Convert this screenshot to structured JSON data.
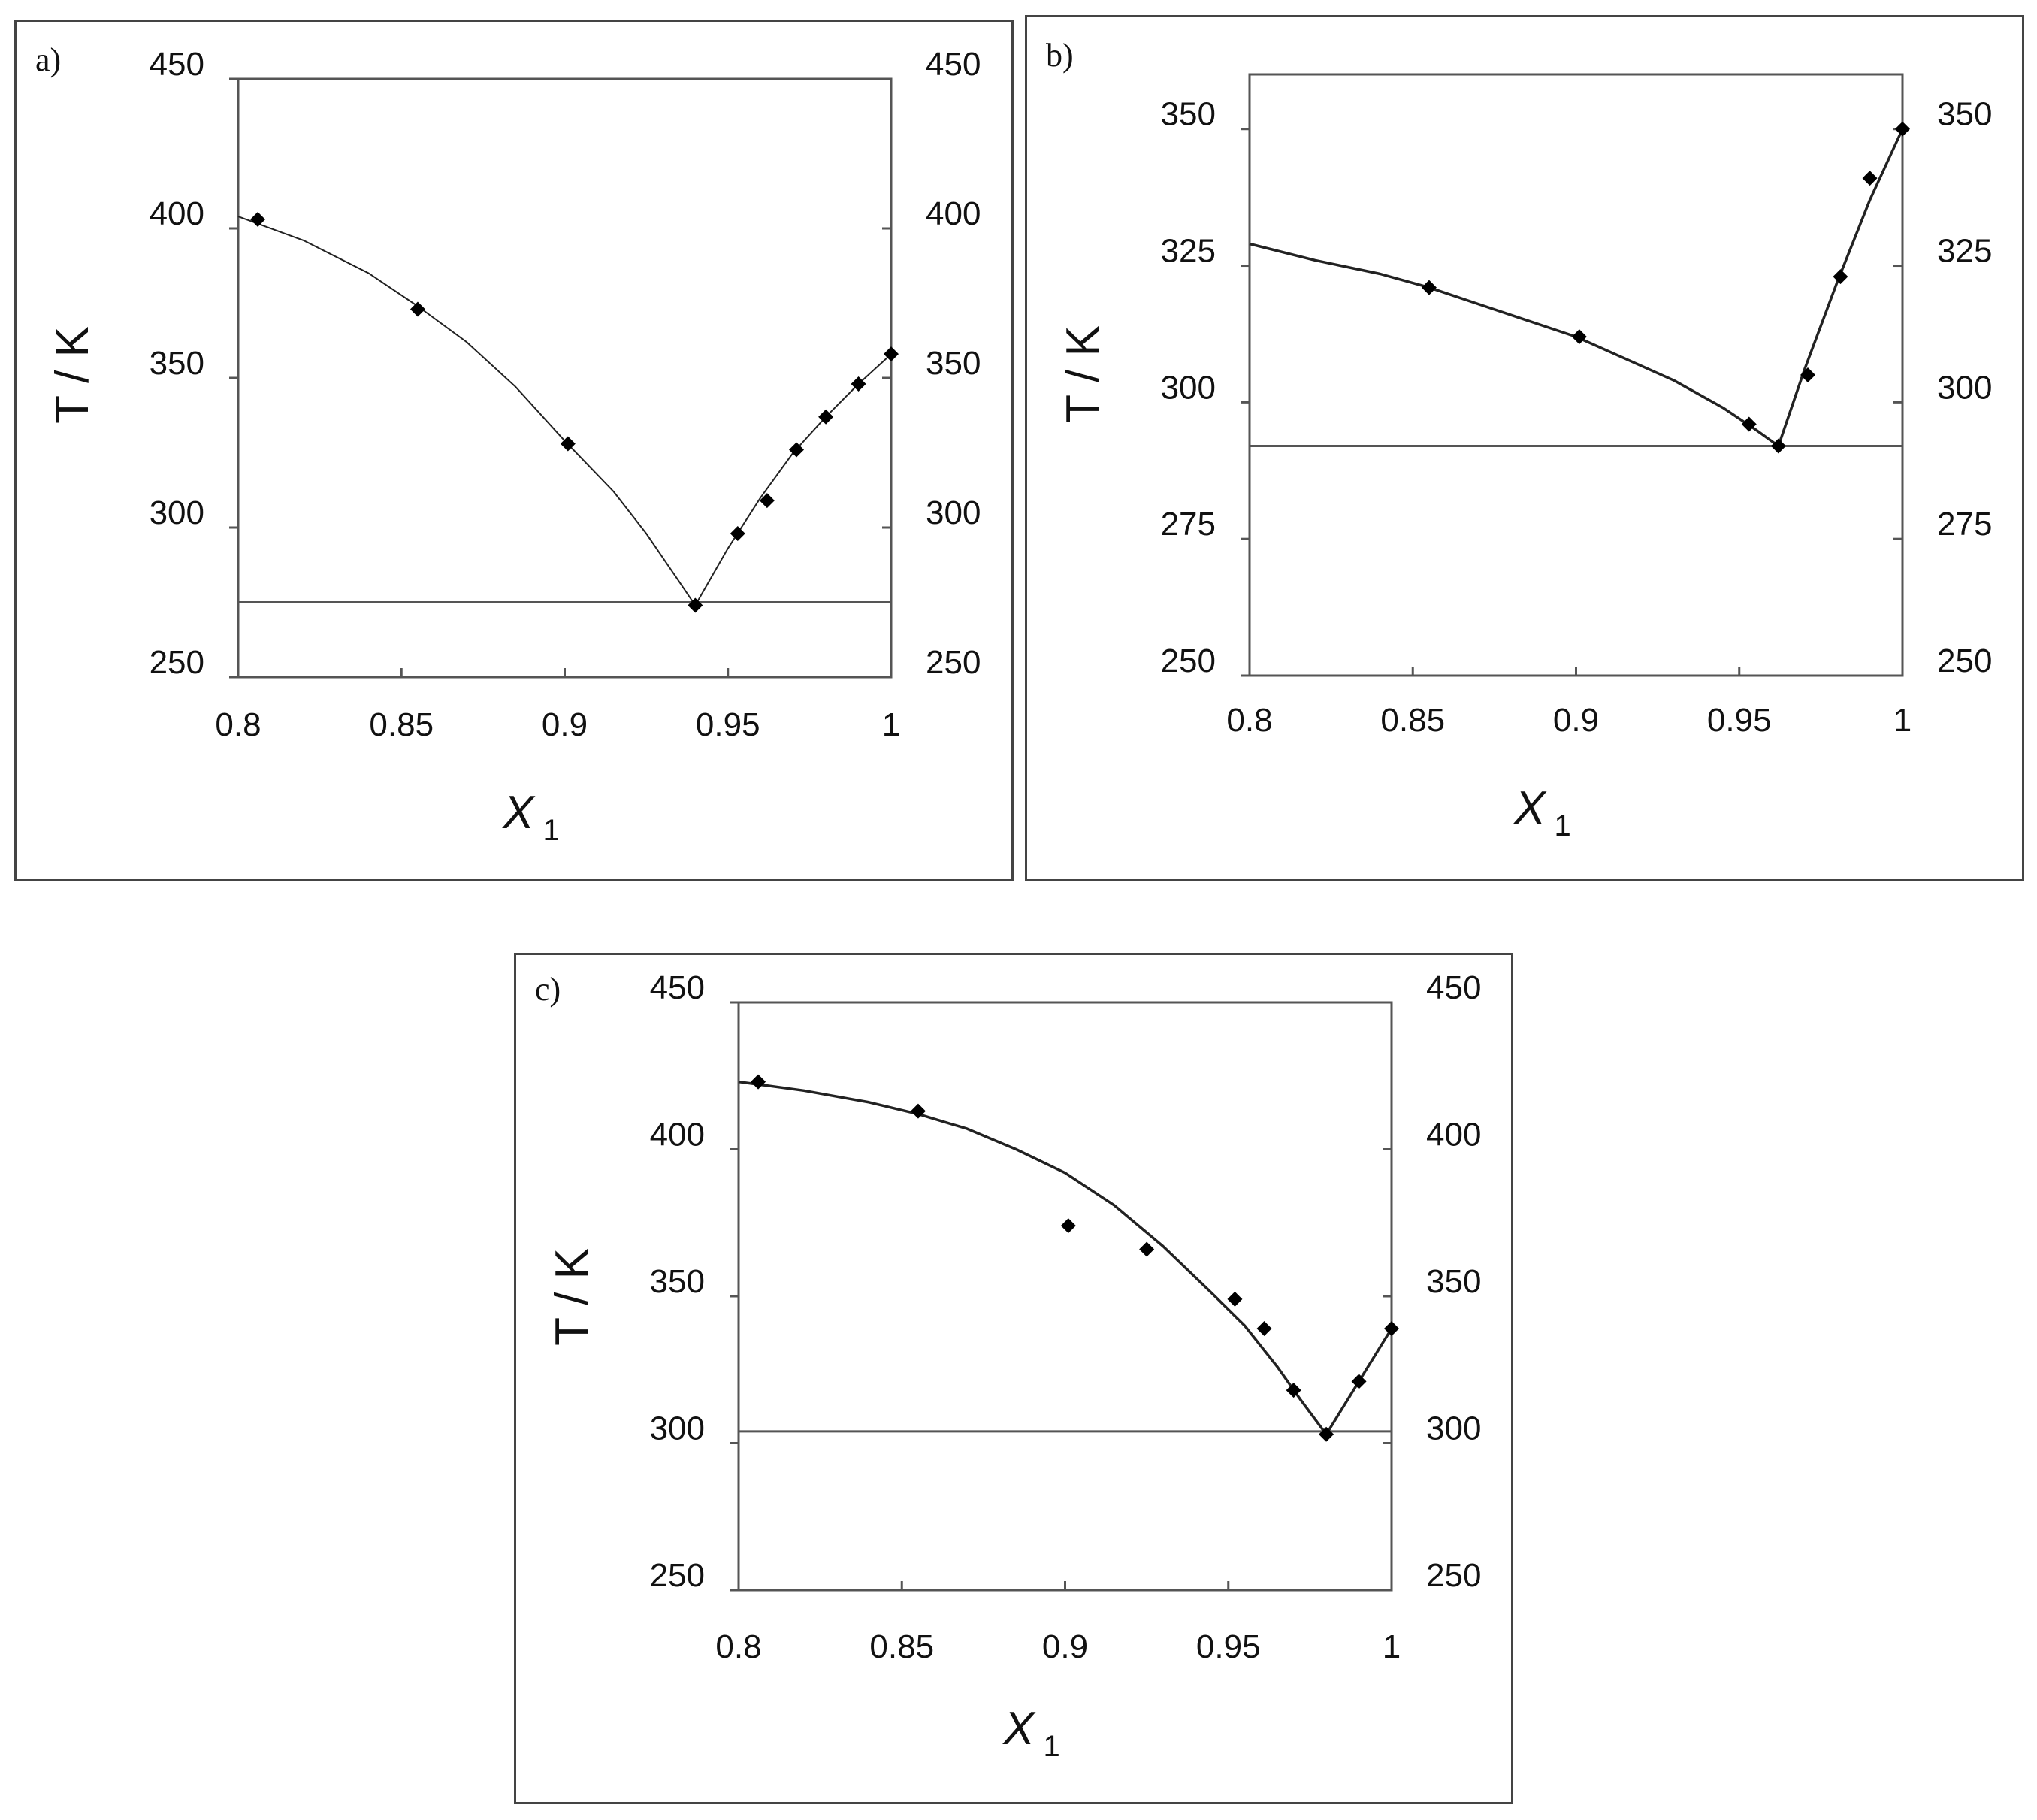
{
  "chart_data": [
    {
      "type": "line",
      "panel_label": "a)",
      "xlabel": "X",
      "xlabel_sub": "1",
      "ylabel": "T / K",
      "xlim": [
        0.8,
        1.0
      ],
      "ylim": [
        250,
        450
      ],
      "xticks": [
        0.8,
        0.85,
        0.9,
        0.95,
        1.0
      ],
      "xtick_labels": [
        "0.8",
        "0.85",
        "0.9",
        "0.95",
        "1"
      ],
      "yticks": [
        250,
        300,
        350,
        400,
        450
      ],
      "ytick_labels": [
        "250",
        "300",
        "350",
        "400",
        "450"
      ],
      "grid": false,
      "points": [
        {
          "x": 0.806,
          "y": 403
        },
        {
          "x": 0.855,
          "y": 373
        },
        {
          "x": 0.901,
          "y": 328
        },
        {
          "x": 0.94,
          "y": 274
        },
        {
          "x": 0.953,
          "y": 298
        },
        {
          "x": 0.962,
          "y": 309
        },
        {
          "x": 0.971,
          "y": 326
        },
        {
          "x": 0.98,
          "y": 337
        },
        {
          "x": 0.99,
          "y": 348
        },
        {
          "x": 1.0,
          "y": 358
        }
      ],
      "fit_curve": [
        {
          "x": 0.8,
          "y": 404
        },
        {
          "x": 0.82,
          "y": 396
        },
        {
          "x": 0.84,
          "y": 385
        },
        {
          "x": 0.855,
          "y": 374
        },
        {
          "x": 0.87,
          "y": 362
        },
        {
          "x": 0.885,
          "y": 347
        },
        {
          "x": 0.9,
          "y": 329
        },
        {
          "x": 0.915,
          "y": 312
        },
        {
          "x": 0.925,
          "y": 298
        },
        {
          "x": 0.935,
          "y": 282
        },
        {
          "x": 0.94,
          "y": 274
        },
        {
          "x": 0.95,
          "y": 293
        },
        {
          "x": 0.96,
          "y": 310
        },
        {
          "x": 0.97,
          "y": 325
        },
        {
          "x": 0.98,
          "y": 337
        },
        {
          "x": 0.99,
          "y": 348
        },
        {
          "x": 1.0,
          "y": 358
        }
      ],
      "hline": 275
    },
    {
      "type": "line",
      "panel_label": "b)",
      "xlabel": "X",
      "xlabel_sub": "1",
      "ylabel": "T / K",
      "xlim": [
        0.8,
        1.0
      ],
      "ylim": [
        250,
        360
      ],
      "xticks": [
        0.8,
        0.85,
        0.9,
        0.95,
        1.0
      ],
      "xtick_labels": [
        "0.8",
        "0.85",
        "0.9",
        "0.95",
        "1"
      ],
      "yticks": [
        250,
        275,
        300,
        325,
        350
      ],
      "ytick_labels": [
        "250",
        "275",
        "300",
        "325",
        "350"
      ],
      "grid": false,
      "points": [
        {
          "x": 0.855,
          "y": 321
        },
        {
          "x": 0.901,
          "y": 312
        },
        {
          "x": 0.953,
          "y": 296
        },
        {
          "x": 0.962,
          "y": 292
        },
        {
          "x": 0.971,
          "y": 305
        },
        {
          "x": 0.981,
          "y": 323
        },
        {
          "x": 0.99,
          "y": 341
        },
        {
          "x": 1.0,
          "y": 350
        }
      ],
      "fit_curve": [
        {
          "x": 0.8,
          "y": 329
        },
        {
          "x": 0.82,
          "y": 326
        },
        {
          "x": 0.84,
          "y": 323.5
        },
        {
          "x": 0.855,
          "y": 321
        },
        {
          "x": 0.87,
          "y": 318
        },
        {
          "x": 0.885,
          "y": 315
        },
        {
          "x": 0.9,
          "y": 312
        },
        {
          "x": 0.915,
          "y": 308
        },
        {
          "x": 0.93,
          "y": 304
        },
        {
          "x": 0.945,
          "y": 299
        },
        {
          "x": 0.955,
          "y": 295
        },
        {
          "x": 0.962,
          "y": 292
        },
        {
          "x": 0.97,
          "y": 306
        },
        {
          "x": 0.98,
          "y": 322
        },
        {
          "x": 0.99,
          "y": 337
        },
        {
          "x": 1.0,
          "y": 350
        }
      ],
      "hline": 292
    },
    {
      "type": "line",
      "panel_label": "c)",
      "xlabel": "X",
      "xlabel_sub": "1",
      "ylabel": "T / K",
      "xlim": [
        0.8,
        1.0
      ],
      "ylim": [
        250,
        450
      ],
      "xticks": [
        0.8,
        0.85,
        0.9,
        0.95,
        1.0
      ],
      "xtick_labels": [
        "0.8",
        "0.85",
        "0.9",
        "0.95",
        "1"
      ],
      "yticks": [
        250,
        300,
        350,
        400,
        450
      ],
      "ytick_labels": [
        "250",
        "300",
        "350",
        "400",
        "450"
      ],
      "grid": false,
      "points": [
        {
          "x": 0.806,
          "y": 423
        },
        {
          "x": 0.855,
          "y": 413
        },
        {
          "x": 0.901,
          "y": 374
        },
        {
          "x": 0.925,
          "y": 366
        },
        {
          "x": 0.952,
          "y": 349
        },
        {
          "x": 0.961,
          "y": 339
        },
        {
          "x": 0.97,
          "y": 318
        },
        {
          "x": 0.98,
          "y": 303
        },
        {
          "x": 0.99,
          "y": 321
        },
        {
          "x": 1.0,
          "y": 339
        }
      ],
      "fit_curve": [
        {
          "x": 0.8,
          "y": 423
        },
        {
          "x": 0.82,
          "y": 420
        },
        {
          "x": 0.84,
          "y": 416
        },
        {
          "x": 0.855,
          "y": 412
        },
        {
          "x": 0.87,
          "y": 407
        },
        {
          "x": 0.885,
          "y": 400
        },
        {
          "x": 0.9,
          "y": 392
        },
        {
          "x": 0.915,
          "y": 381
        },
        {
          "x": 0.93,
          "y": 367
        },
        {
          "x": 0.945,
          "y": 351
        },
        {
          "x": 0.955,
          "y": 340
        },
        {
          "x": 0.965,
          "y": 326
        },
        {
          "x": 0.972,
          "y": 315
        },
        {
          "x": 0.98,
          "y": 303
        },
        {
          "x": 0.99,
          "y": 321
        },
        {
          "x": 1.0,
          "y": 339
        }
      ],
      "hline": 304
    }
  ]
}
